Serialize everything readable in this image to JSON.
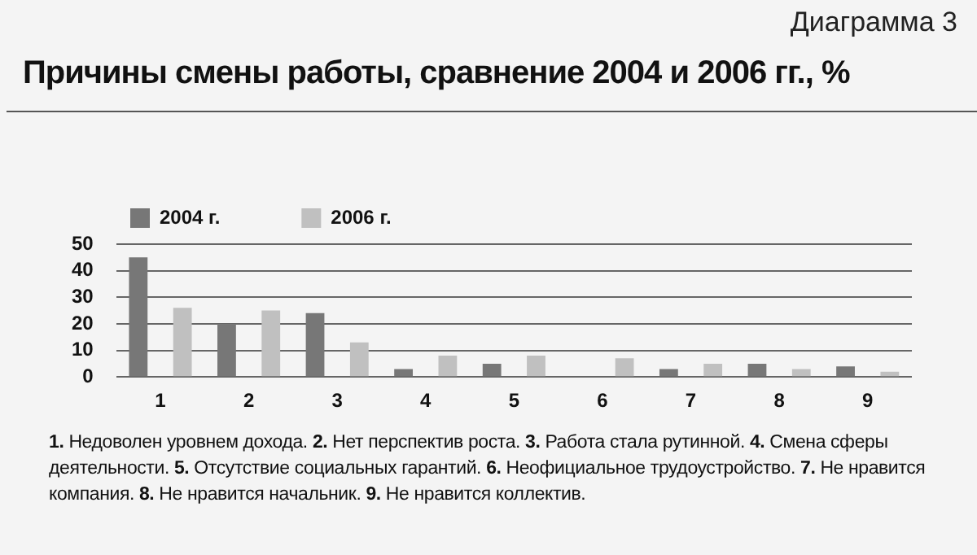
{
  "chart_data": {
    "type": "bar",
    "title": "Причины смены работы, сравнение 2004 и 2006 гг., %",
    "subtitle": "Диаграмма 3",
    "categories": [
      "1",
      "2",
      "3",
      "4",
      "5",
      "6",
      "7",
      "8",
      "9"
    ],
    "series": [
      {
        "name": "2004 г.",
        "color": "#777777",
        "values": [
          45,
          20,
          24,
          3,
          5,
          null,
          3,
          5,
          4
        ]
      },
      {
        "name": "2006 г.",
        "color": "#c0c0c0",
        "values": [
          26,
          25,
          13,
          8,
          8,
          7,
          5,
          3,
          2
        ]
      }
    ],
    "ylim": [
      0,
      50
    ],
    "yticks": [
      0,
      10,
      20,
      30,
      40,
      50
    ],
    "grid": "y",
    "legend": "top left",
    "annotations": [
      "1. Недоволен уровнем дохода. 2. Нет перспектив роста. 3. Работа стала рутинной. 4. Смена сферы деятельности. 5. Отсутствие социальных гарантий. 6. Неофициальное трудоустройство. 7. Не нравится компания. 8. Не нравится начальник. 9. Не нравится коллектив."
    ]
  }
}
